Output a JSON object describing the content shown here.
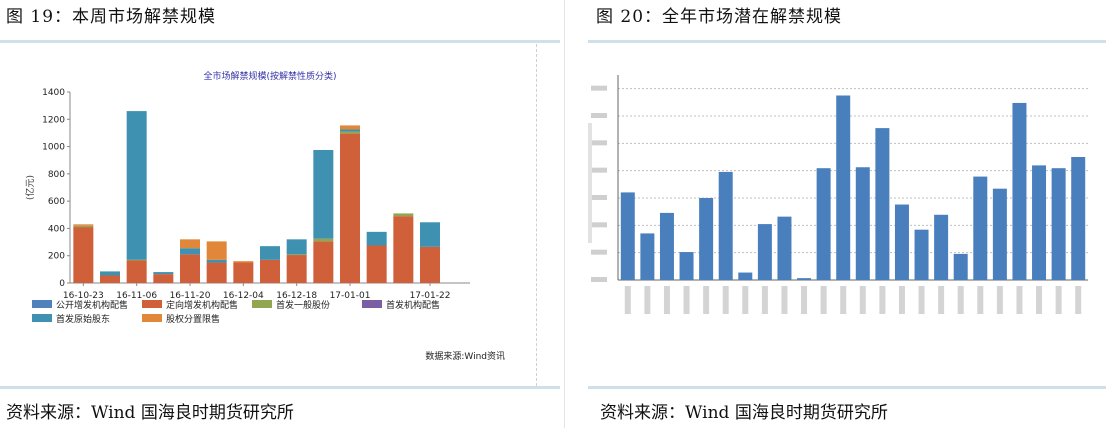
{
  "left": {
    "figure_title": "图 19：本周市场解禁规模",
    "source": "资料来源：Wind 国海良时期货研究所"
  },
  "right": {
    "figure_title": "图 20：全年市场潜在解禁规模",
    "source": "资料来源：Wind 国海良时期货研究所"
  },
  "chart_data": [
    {
      "type": "bar",
      "stacked": true,
      "title": "全市场解禁规模(按解禁性质分类)",
      "ylabel": "(亿元)",
      "xlabel": "",
      "ylim": [
        0,
        1400
      ],
      "yticks": [
        0,
        200,
        400,
        600,
        800,
        1000,
        1200,
        1400
      ],
      "grid": false,
      "legend_position": "bottom",
      "note": "数据来源:Wind资讯",
      "category_count": 15,
      "tick_labels": [
        {
          "index": 0,
          "label": "16-10-23"
        },
        {
          "index": 2,
          "label": "16-11-06"
        },
        {
          "index": 4,
          "label": "16-11-20"
        },
        {
          "index": 6,
          "label": "16-12-04"
        },
        {
          "index": 8,
          "label": "16-12-18"
        },
        {
          "index": 10,
          "label": "17-01-01"
        },
        {
          "index": 13,
          "label": "17-01-22"
        }
      ],
      "series": [
        {
          "name": "公开增发机构配售",
          "color": "#4f81bd",
          "values": [
            0,
            0,
            0,
            0,
            0,
            0,
            0,
            0,
            0,
            0,
            0,
            0,
            0,
            0,
            0
          ]
        },
        {
          "name": "定向增发机构配售",
          "color": "#d0603a",
          "values": [
            410,
            55,
            165,
            65,
            210,
            150,
            150,
            170,
            205,
            305,
            1095,
            275,
            490,
            265,
            0
          ]
        },
        {
          "name": "首发一般股份",
          "color": "#92a651",
          "values": [
            10,
            0,
            5,
            0,
            0,
            0,
            0,
            0,
            5,
            20,
            15,
            0,
            20,
            0,
            0
          ]
        },
        {
          "name": "首发机构配售",
          "color": "#7b5fa3",
          "values": [
            0,
            0,
            0,
            0,
            0,
            0,
            0,
            0,
            0,
            0,
            0,
            0,
            0,
            0,
            0
          ]
        },
        {
          "name": "首发原始股东",
          "color": "#3f91b1",
          "values": [
            0,
            30,
            1090,
            15,
            45,
            20,
            0,
            100,
            110,
            650,
            15,
            100,
            0,
            180,
            0
          ]
        },
        {
          "name": "股权分置限售",
          "color": "#e0873a",
          "values": [
            10,
            0,
            0,
            0,
            65,
            135,
            10,
            0,
            0,
            0,
            30,
            0,
            0,
            0,
            0
          ]
        }
      ]
    },
    {
      "type": "bar",
      "title": "",
      "categories": [
        "1",
        "2",
        "3",
        "4",
        "5",
        "6",
        "7",
        "8",
        "9",
        "10",
        "11",
        "12",
        "13",
        "14",
        "15",
        "16",
        "17",
        "18",
        "19",
        "20",
        "21",
        "22",
        "23",
        "24"
      ],
      "values": [
        470,
        250,
        360,
        150,
        440,
        580,
        40,
        300,
        340,
        10,
        600,
        990,
        605,
        815,
        405,
        270,
        350,
        140,
        555,
        490,
        950,
        615,
        600,
        660
      ],
      "ylim": [
        0,
        1100
      ],
      "grid": true,
      "color": "#4a7fbe"
    }
  ]
}
